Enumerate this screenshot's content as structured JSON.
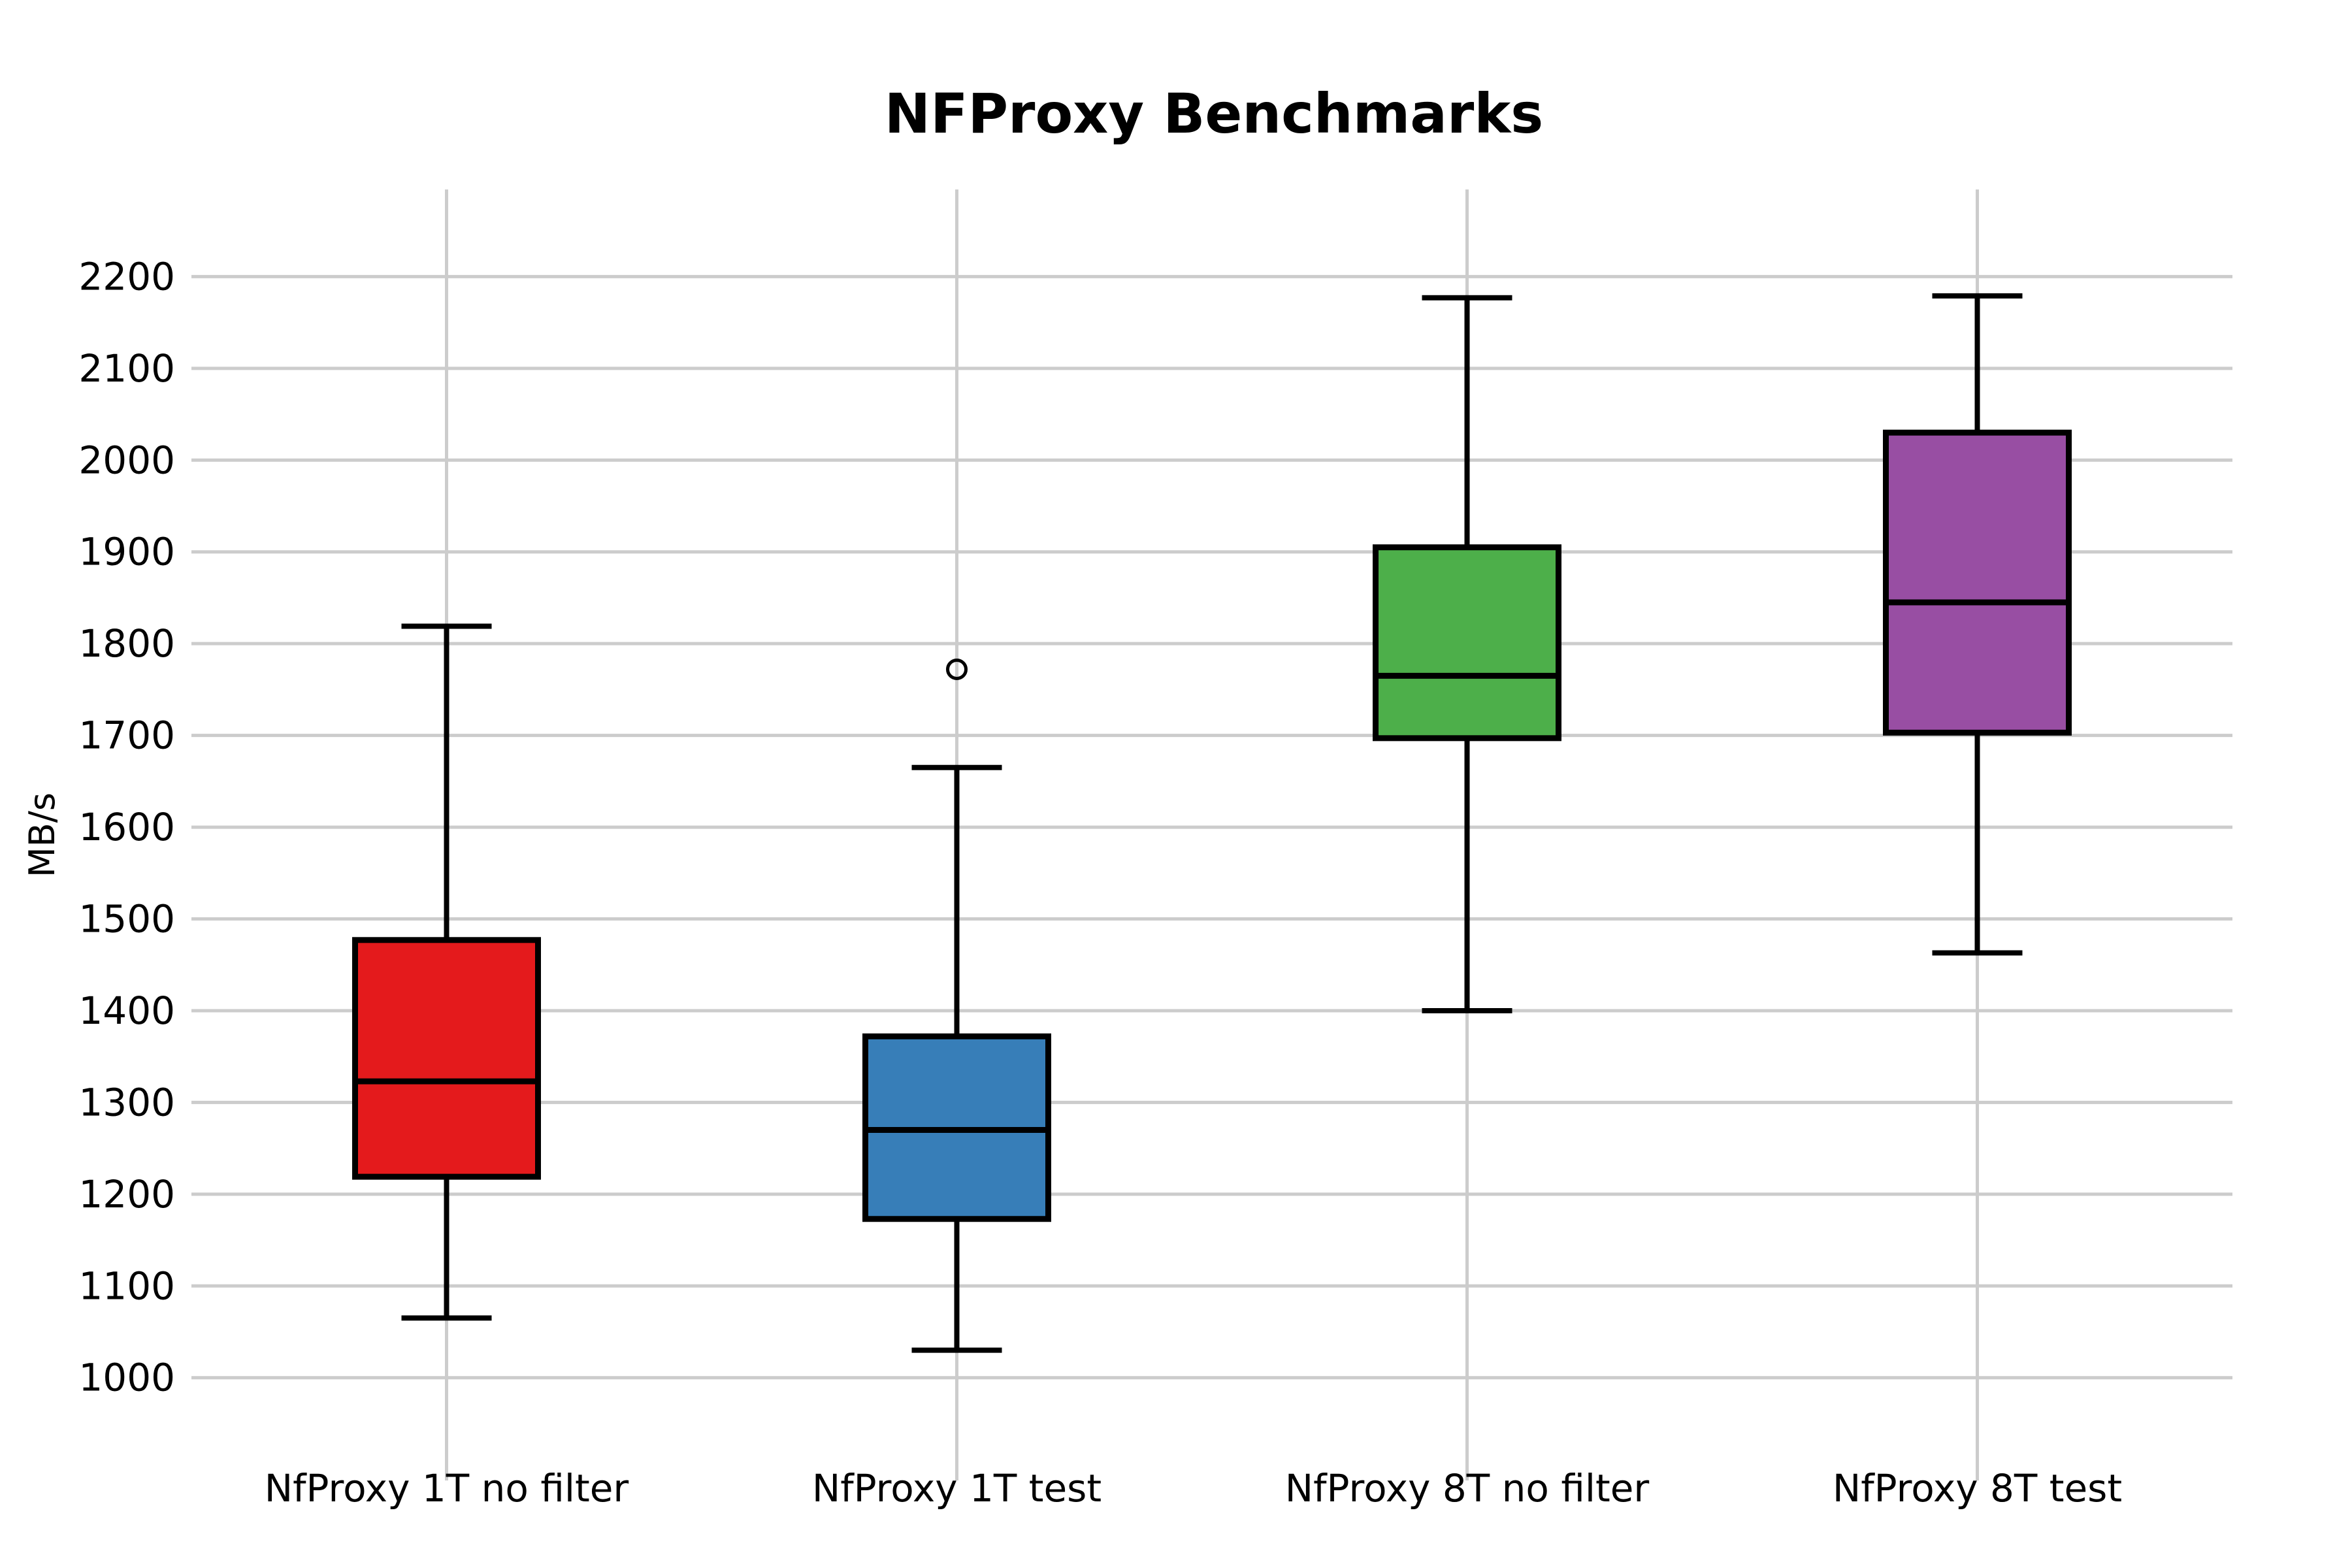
{
  "page": {
    "background": "#ffffff"
  },
  "chart_data": {
    "type": "boxplot",
    "title": "NFProxy Benchmarks",
    "ylabel": "MB/s",
    "xlabel": "",
    "categories": [
      "NfProxy 1T no filter",
      "NfProxy 1T test",
      "NfProxy 8T no filter",
      "NfProxy 8T test"
    ],
    "series": [
      {
        "name": "NfProxy 1T no filter",
        "color": "#e41a1c",
        "whisker_low": 1065,
        "q1": 1219,
        "median": 1323,
        "q3": 1477,
        "whisker_high": 1819,
        "outliers": []
      },
      {
        "name": "NfProxy 1T test",
        "color": "#377eb8",
        "whisker_low": 1030,
        "q1": 1173,
        "median": 1270,
        "q3": 1372,
        "whisker_high": 1665,
        "outliers": [
          1772
        ]
      },
      {
        "name": "NfProxy 8T no filter",
        "color": "#4daf4a",
        "whisker_low": 1400,
        "q1": 1697,
        "median": 1765,
        "q3": 1905,
        "whisker_high": 2177,
        "outliers": []
      },
      {
        "name": "NfProxy 8T test",
        "color": "#984ea3",
        "whisker_low": 1463,
        "q1": 1703,
        "median": 1845,
        "q3": 2030,
        "whisker_high": 2179,
        "outliers": []
      }
    ],
    "yticks": [
      1000,
      1100,
      1200,
      1300,
      1400,
      1500,
      1600,
      1700,
      1800,
      1900,
      2000,
      2100,
      2200
    ],
    "ylim": [
      888,
      2295
    ],
    "grid": true,
    "gridline_color": "#cccccc",
    "box_edge_color": "#000000",
    "legend_position": "none"
  }
}
